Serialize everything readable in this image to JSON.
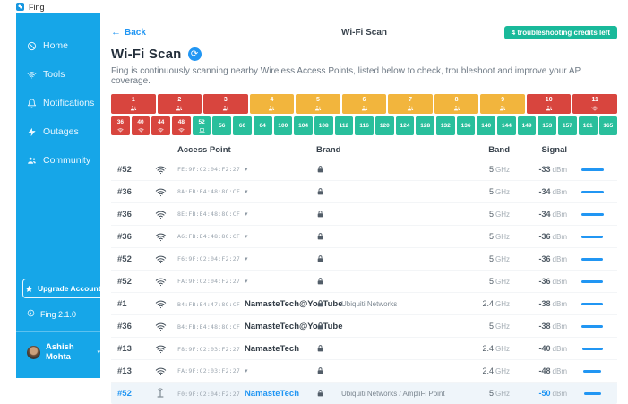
{
  "window": {
    "title": "Fing"
  },
  "sidebar": {
    "items": [
      {
        "label": "Home",
        "icon": "home"
      },
      {
        "label": "Tools",
        "icon": "wifi"
      },
      {
        "label": "Notifications",
        "icon": "bell"
      },
      {
        "label": "Outages",
        "icon": "bolt"
      },
      {
        "label": "Community",
        "icon": "users"
      }
    ],
    "upgrade_label": "Upgrade Account",
    "version": "Fing 2.1.0",
    "user": "Ashish Mohta"
  },
  "header": {
    "back": "Back",
    "title": "Wi-Fi Scan",
    "credits_badge": "4 troubleshooting credits left"
  },
  "page": {
    "title": "Wi-Fi Scan",
    "description": "Fing is continuously scanning nearby Wireless Access Points, listed below to check, troubleshoot and improve your AP coverage."
  },
  "colors": {
    "sidebar": "#16a6e8",
    "accent": "#2196f3",
    "badge": "#19b99a",
    "channel_busy": "#d8453e",
    "channel_warning": "#f2b53d",
    "channel_free": "#29bf9c"
  },
  "channels_24ghz": [
    {
      "num": "1",
      "status": "busy",
      "icon": "users"
    },
    {
      "num": "2",
      "status": "busy",
      "icon": "users"
    },
    {
      "num": "3",
      "status": "busy",
      "icon": "users"
    },
    {
      "num": "4",
      "status": "warning",
      "icon": "users"
    },
    {
      "num": "5",
      "status": "warning",
      "icon": "users"
    },
    {
      "num": "6",
      "status": "warning",
      "icon": "users"
    },
    {
      "num": "7",
      "status": "warning",
      "icon": "users"
    },
    {
      "num": "8",
      "status": "warning",
      "icon": "users"
    },
    {
      "num": "9",
      "status": "warning",
      "icon": "users"
    },
    {
      "num": "10",
      "status": "busy",
      "icon": "users"
    },
    {
      "num": "11",
      "status": "busy",
      "icon": "wifi"
    }
  ],
  "channels_5ghz": [
    {
      "num": "36",
      "status": "busy",
      "icon": "wifi"
    },
    {
      "num": "40",
      "status": "busy",
      "icon": "wifi"
    },
    {
      "num": "44",
      "status": "busy",
      "icon": "wifi"
    },
    {
      "num": "48",
      "status": "busy",
      "icon": "wifi"
    },
    {
      "num": "52",
      "status": "free",
      "icon": "laptop"
    },
    {
      "num": "56",
      "status": "free",
      "icon": ""
    },
    {
      "num": "60",
      "status": "free",
      "icon": ""
    },
    {
      "num": "64",
      "status": "free",
      "icon": ""
    },
    {
      "num": "100",
      "status": "free",
      "icon": ""
    },
    {
      "num": "104",
      "status": "free",
      "icon": ""
    },
    {
      "num": "108",
      "status": "free",
      "icon": ""
    },
    {
      "num": "112",
      "status": "free",
      "icon": ""
    },
    {
      "num": "116",
      "status": "free",
      "icon": ""
    },
    {
      "num": "120",
      "status": "free",
      "icon": ""
    },
    {
      "num": "124",
      "status": "free",
      "icon": ""
    },
    {
      "num": "128",
      "status": "free",
      "icon": ""
    },
    {
      "num": "132",
      "status": "free",
      "icon": ""
    },
    {
      "num": "136",
      "status": "free",
      "icon": ""
    },
    {
      "num": "140",
      "status": "free",
      "icon": ""
    },
    {
      "num": "144",
      "status": "free",
      "icon": ""
    },
    {
      "num": "149",
      "status": "free",
      "icon": ""
    },
    {
      "num": "153",
      "status": "free",
      "icon": ""
    },
    {
      "num": "157",
      "status": "free",
      "icon": ""
    },
    {
      "num": "161",
      "status": "free",
      "icon": ""
    },
    {
      "num": "165",
      "status": "free",
      "icon": ""
    }
  ],
  "table": {
    "headers": {
      "access_point": "Access Point",
      "brand": "Brand",
      "band": "Band",
      "signal": "Signal"
    },
    "rows": [
      {
        "channel": "#52",
        "icon": "wifi",
        "mac": "FE:9F:C2:04:F2:27",
        "caret": true,
        "ssid": "",
        "locked": true,
        "brand": "",
        "band": "5 GHz",
        "signal": "-33 dBm",
        "highlighted": false
      },
      {
        "channel": "#36",
        "icon": "wifi",
        "mac": "8A:FB:E4:48:8C:CF",
        "caret": true,
        "ssid": "",
        "locked": true,
        "brand": "",
        "band": "5 GHz",
        "signal": "-34 dBm",
        "highlighted": false
      },
      {
        "channel": "#36",
        "icon": "wifi",
        "mac": "8E:FB:E4:48:8C:CF",
        "caret": true,
        "ssid": "",
        "locked": true,
        "brand": "",
        "band": "5 GHz",
        "signal": "-34 dBm",
        "highlighted": false
      },
      {
        "channel": "#36",
        "icon": "wifi",
        "mac": "A6:FB:E4:48:8C:CF",
        "caret": true,
        "ssid": "",
        "locked": true,
        "brand": "",
        "band": "5 GHz",
        "signal": "-36 dBm",
        "highlighted": false
      },
      {
        "channel": "#52",
        "icon": "wifi",
        "mac": "F6:9F:C2:04:F2:27",
        "caret": true,
        "ssid": "",
        "locked": true,
        "brand": "",
        "band": "5 GHz",
        "signal": "-36 dBm",
        "highlighted": false
      },
      {
        "channel": "#52",
        "icon": "wifi",
        "mac": "FA:9F:C2:04:F2:27",
        "caret": true,
        "ssid": "",
        "locked": true,
        "brand": "",
        "band": "5 GHz",
        "signal": "-36 dBm",
        "highlighted": false
      },
      {
        "channel": "#1",
        "icon": "wifi",
        "mac": "B4:FB:E4:47:8C:CF",
        "caret": false,
        "ssid": "NamasteTech@YouTube",
        "locked": true,
        "brand": "Ubiquiti Networks",
        "band": "2.4 GHz",
        "signal": "-38 dBm",
        "highlighted": false
      },
      {
        "channel": "#36",
        "icon": "wifi",
        "mac": "B4:FB:E4:48:8C:CF",
        "caret": false,
        "ssid": "NamasteTech@YouTube",
        "locked": true,
        "brand": "",
        "band": "5 GHz",
        "signal": "-38 dBm",
        "highlighted": false
      },
      {
        "channel": "#13",
        "icon": "wifi",
        "mac": "F8:9F:C2:03:F2:27",
        "caret": false,
        "ssid": "NamasteTech",
        "locked": true,
        "brand": "",
        "band": "2.4 GHz",
        "signal": "-40 dBm",
        "highlighted": false
      },
      {
        "channel": "#13",
        "icon": "wifi",
        "mac": "FA:9F:C2:03:F2:27",
        "caret": true,
        "ssid": "",
        "locked": true,
        "brand": "",
        "band": "2.4 GHz",
        "signal": "-48 dBm",
        "highlighted": false
      },
      {
        "channel": "#52",
        "icon": "ap",
        "mac": "F0:9F:C2:04:F2:27",
        "caret": false,
        "ssid": "NamasteTech",
        "locked": true,
        "brand": "Ubiquiti Networks / AmpliFi Point",
        "band": "5 GHz",
        "signal": "-50 dBm",
        "highlighted": true
      }
    ]
  }
}
